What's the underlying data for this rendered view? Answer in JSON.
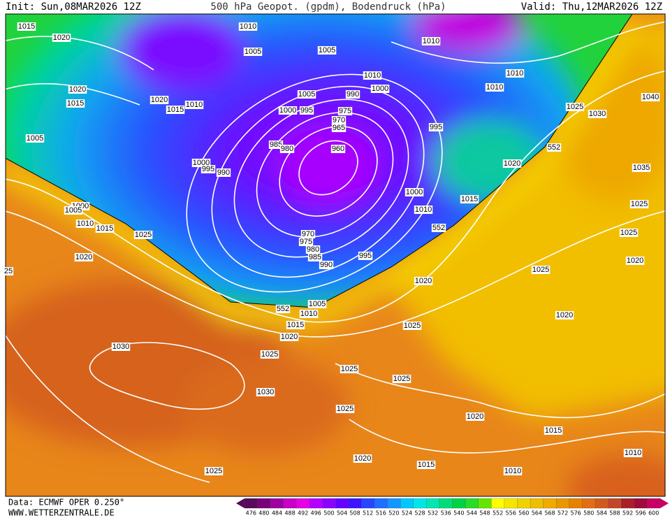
{
  "header": {
    "init": "Init: Sun,08MAR2026 12Z",
    "title": "500 hPa Geopot. (gpdm), Bodendruck (hPa)",
    "valid": "Valid: Thu,12MAR2026 12Z"
  },
  "isobar_labels": [
    "1015",
    "1020",
    "1010",
    "1005",
    "1005",
    "1010",
    "1010",
    "1010",
    "1000",
    "1010",
    "1020",
    "1015",
    "1020",
    "1015",
    "1010",
    "1005",
    "990",
    "1000",
    "995",
    "975",
    "970",
    "965",
    "995",
    "1025",
    "1030",
    "1040",
    "1005",
    "985",
    "980",
    "960",
    "552",
    "1020",
    "1035",
    "1000",
    "995",
    "990",
    "1000",
    "1015",
    "1010",
    "1025",
    "1000",
    "1005",
    "1010",
    "1015",
    "1025",
    "552",
    "970",
    "975",
    "980",
    "985",
    "990",
    "995",
    "1025",
    "1020",
    "1020",
    "25",
    "1025",
    "1020",
    "1005",
    "552",
    "1010",
    "1020",
    "1025",
    "1015",
    "1020",
    "1030",
    "1025",
    "1025",
    "1025",
    "1030",
    "1025",
    "1020",
    "1015",
    "1010",
    "1020",
    "1015",
    "1010",
    "1025"
  ],
  "colorbar": {
    "values": [
      476,
      480,
      484,
      488,
      492,
      496,
      500,
      504,
      508,
      512,
      516,
      520,
      524,
      528,
      532,
      536,
      540,
      544,
      548,
      552,
      556,
      560,
      564,
      568,
      572,
      576,
      580,
      584,
      588,
      592,
      596,
      600
    ],
    "colors": [
      "#5a0a5a",
      "#7a007a",
      "#a000a0",
      "#c800c8",
      "#e600e6",
      "#b400ff",
      "#8c00ff",
      "#6400ff",
      "#3c14ff",
      "#2846ff",
      "#1e6eff",
      "#1496ff",
      "#00c8ff",
      "#00e6e6",
      "#00e6b4",
      "#00dc78",
      "#00d246",
      "#28dc28",
      "#64e600",
      "#ffff00",
      "#f5e600",
      "#f0d200",
      "#f0be00",
      "#f0aa00",
      "#eb9600",
      "#e68200",
      "#e16e14",
      "#d25a1e",
      "#c34628",
      "#aa1e28",
      "#a00a3c",
      "#c80064"
    ]
  },
  "footer": {
    "data": "Data: ECMWF OPER 0.250°",
    "site": "WWW.WETTERZENTRALE.DE"
  }
}
